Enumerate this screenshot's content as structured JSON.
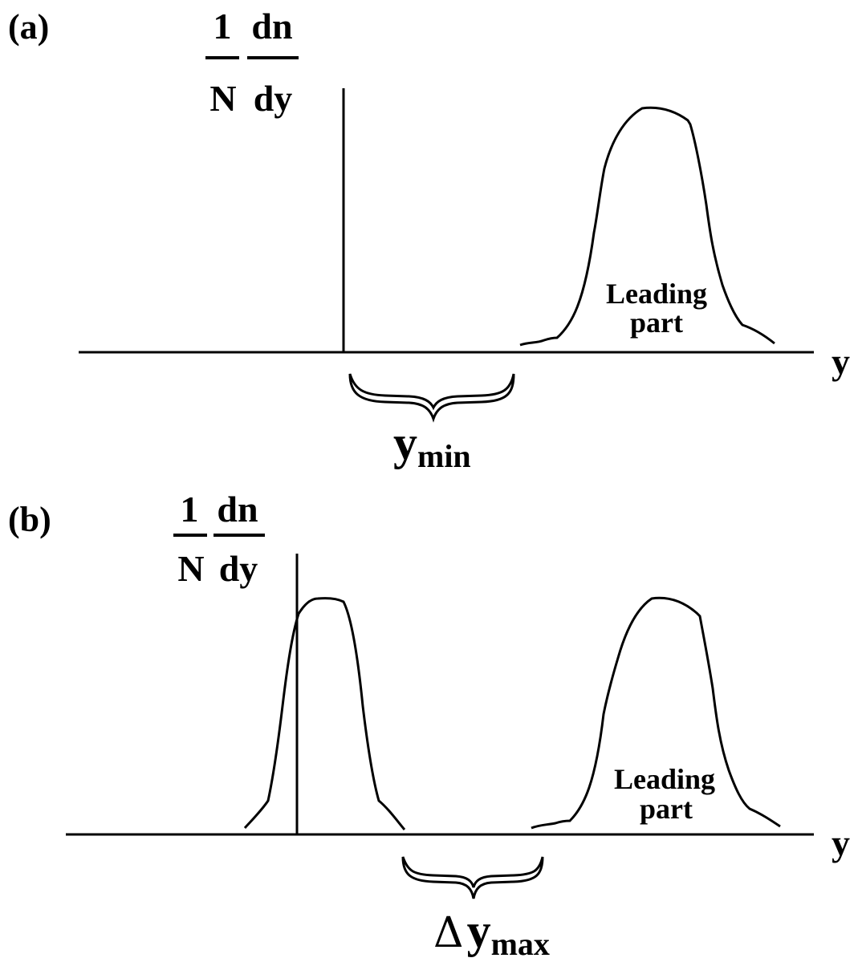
{
  "panel_a": {
    "label": "(a)",
    "ylabel_frac1_num": "1",
    "ylabel_frac1_den": "N",
    "ylabel_frac2_num": "dn",
    "ylabel_frac2_den": "dy",
    "xaxis_label": "y",
    "peak_label_line1": "Leading",
    "peak_label_line2": "part",
    "gap_label_main": "y",
    "gap_label_sub": "min"
  },
  "panel_b": {
    "label": "(b)",
    "ylabel_frac1_num": "1",
    "ylabel_frac1_den": "N",
    "ylabel_frac2_num": "dn",
    "ylabel_frac2_den": "dy",
    "xaxis_label": "y",
    "peak_label_line1": "Leading",
    "peak_label_line2": "part",
    "gap_label_delta": "Δ",
    "gap_label_main": "y",
    "gap_label_sub": "max"
  },
  "colors": {
    "stroke": "#000000",
    "background": "#ffffff"
  }
}
